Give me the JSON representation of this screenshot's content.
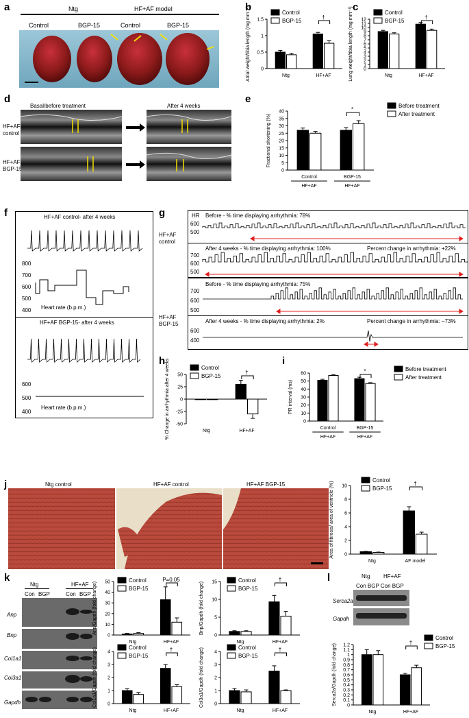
{
  "labels": {
    "a": "a",
    "b": "b",
    "c": "c",
    "d": "d",
    "e": "e",
    "f": "f",
    "g": "g",
    "h": "h",
    "i": "i",
    "j": "j",
    "k": "k",
    "l": "l"
  },
  "panel_a": {
    "group_ntg": "Ntg",
    "group_model": "HF+AF model",
    "col1": "Control",
    "col2": "BGP-15",
    "col3": "Control",
    "col4": "BGP-15"
  },
  "panel_d": {
    "basal": "Basal/before treatment",
    "after": "After 4 weeks",
    "row1": "HF+AF\ncontrol",
    "row2": "HF+AF\nBGP-15"
  },
  "panel_f": {
    "top_title": "HF+AF control- after 4 weeks",
    "bottom_title": "HF+AF BGP-15- after 4 weeks",
    "hr_label": "Heart rate (b.p.m.)",
    "top_ticks": [
      "800",
      "700",
      "600",
      "500",
      "400"
    ],
    "bottom_ticks": [
      "600",
      "500",
      "400"
    ]
  },
  "panel_g": {
    "hr": "HR",
    "row_control": "HF+AF\ncontrol",
    "row_bgp": "HF+AF\nBGP-15",
    "c_before": "Before - % time displaying arrhythmia: 78%",
    "c_after": "After 4 weeks - % time displaying arrhythmia: 100%",
    "c_change": "Percent change in arrhythmia: +22%",
    "b_before": "Before - % time displaying arrhythmia: 75%",
    "b_after": "After 4 weeks - % time displaying arrhythmia: 2%",
    "b_change": "Percent change in arrhythmia: −73%",
    "ticks_c1": [
      "600",
      "500"
    ],
    "ticks_c2": [
      "700",
      "600",
      "500"
    ],
    "ticks_b1": [
      "700",
      "600",
      "500"
    ],
    "ticks_b2": [
      "600",
      "400"
    ]
  },
  "panel_j": {
    "t1": "Ntg control",
    "t2": "HF+AF control",
    "t3": "HF+AF BGP-15"
  },
  "panel_k_blot": {
    "ntg": "Ntg",
    "hfaf": "HF+AF",
    "con": "Con",
    "bgp": "BGP",
    "genes": [
      "Anp",
      "Bnp",
      "Col1a1",
      "Col3a1",
      "Gapdh"
    ]
  },
  "panel_l_blot": {
    "ntg": "Ntg",
    "hfaf": "HF+AF",
    "lanes": "Con BGP Con BGP",
    "genes": [
      "Serca2a",
      "Gapdh"
    ]
  },
  "colors": {
    "control": "#000000",
    "bgp": "#ffffff",
    "arrow": "#e02020",
    "heart": "#8b1a1a",
    "histo": "#b0443a"
  },
  "chart_data": [
    {
      "id": "b",
      "type": "bar",
      "categories": [
        "Ntg",
        "HF+AF"
      ],
      "series": [
        {
          "name": "Control",
          "values": [
            0.5,
            1.05
          ],
          "err": [
            0.05,
            0.05
          ]
        },
        {
          "name": "BGP-15",
          "values": [
            0.42,
            0.77
          ],
          "err": [
            0.04,
            0.08
          ]
        }
      ],
      "ylabel": "Atrial weight/tibia length (mg mm⁻¹)",
      "ylim": [
        0,
        1.5
      ],
      "yticks": [
        0,
        0.5,
        1.0,
        1.5
      ],
      "annotations": [
        "*",
        "*",
        "†"
      ]
    },
    {
      "id": "c",
      "type": "bar",
      "categories": [
        "Ntg",
        "HF+AF"
      ],
      "series": [
        {
          "name": "Control",
          "values": [
            9.0,
            10.8
          ],
          "err": [
            0.3,
            0.4
          ]
        },
        {
          "name": "BGP-15",
          "values": [
            8.4,
            9.3
          ],
          "err": [
            0.3,
            0.3
          ]
        }
      ],
      "ylabel": "Lung weight/tibia length (mg mm⁻¹)",
      "ylim": [
        0,
        12
      ],
      "yticks": [
        0,
        1,
        2,
        3,
        4,
        5,
        6,
        7,
        8,
        9,
        10,
        11,
        12
      ],
      "annotations": [
        "*",
        "†"
      ]
    },
    {
      "id": "e",
      "type": "bar",
      "categories": [
        "Control",
        "BGP-15"
      ],
      "group_sub": "HF+AF",
      "series": [
        {
          "name": "Before treatment",
          "values": [
            27,
            27
          ],
          "err": [
            1.5,
            1.8
          ]
        },
        {
          "name": "After treatment",
          "values": [
            25,
            31.5
          ],
          "err": [
            1.2,
            2.0
          ]
        }
      ],
      "ylabel": "Fractional shortening (%)",
      "ylim": [
        0,
        40
      ],
      "yticks": [
        0,
        5,
        10,
        15,
        20,
        25,
        30,
        35,
        40
      ],
      "annotations": [
        "*",
        "*",
        "*"
      ]
    },
    {
      "id": "h",
      "type": "bar",
      "categories": [
        "Ntg",
        "HF+AF"
      ],
      "series": [
        {
          "name": "Control",
          "values": [
            0,
            30
          ],
          "err": [
            0,
            8
          ]
        },
        {
          "name": "BGP-15",
          "values": [
            0,
            -30
          ],
          "err": [
            0,
            9
          ]
        }
      ],
      "ylabel": "% Change in arrhythmia after 4 weeks",
      "ylim": [
        -50,
        50
      ],
      "yticks": [
        -50,
        -25,
        0,
        25,
        50
      ],
      "annotations": [
        "*",
        "†"
      ]
    },
    {
      "id": "i",
      "type": "bar",
      "categories": [
        "Control",
        "BGP-15"
      ],
      "group_sub": "HF+AF",
      "series": [
        {
          "name": "Before treatment",
          "values": [
            51,
            53
          ],
          "err": [
            1.2,
            1.8
          ]
        },
        {
          "name": "After treatment",
          "values": [
            57,
            47
          ],
          "err": [
            1.0,
            1.0
          ]
        }
      ],
      "ylabel": "PR interval (ms)",
      "ylim": [
        0,
        60
      ],
      "yticks": [
        0,
        10,
        20,
        30,
        40,
        50,
        60
      ],
      "annotations": [
        "*",
        "*",
        "*"
      ]
    },
    {
      "id": "j",
      "type": "bar",
      "categories": [
        "Ntg",
        "AF model"
      ],
      "series": [
        {
          "name": "Control",
          "values": [
            0.35,
            6.3
          ],
          "err": [
            0.05,
            0.6
          ]
        },
        {
          "name": "BGP-15",
          "values": [
            0.25,
            2.9
          ],
          "err": [
            0.05,
            0.3
          ]
        }
      ],
      "ylabel": "Area of fibrosis/ area of ventricle (%)",
      "ylim": [
        0,
        10
      ],
      "yticks": [
        0,
        2,
        4,
        6,
        8,
        10
      ],
      "annotations": [
        "*",
        "*",
        "†"
      ]
    },
    {
      "id": "k1",
      "type": "bar",
      "categories": [
        "Ntg",
        "HF+AF"
      ],
      "series": [
        {
          "name": "Control",
          "values": [
            1,
            33
          ],
          "err": [
            0.5,
            12
          ]
        },
        {
          "name": "BGP-15",
          "values": [
            1.5,
            12
          ],
          "err": [
            0.7,
            4
          ]
        }
      ],
      "ylabel": "Anp/Gapdh (fold change)",
      "ylim": [
        0,
        50
      ],
      "yticks": [
        0,
        10,
        20,
        30,
        40,
        50
      ],
      "annotations": [
        "*",
        "P=0.05"
      ]
    },
    {
      "id": "k2",
      "type": "bar",
      "categories": [
        "Ntg",
        "HF+AF"
      ],
      "series": [
        {
          "name": "Control",
          "values": [
            1,
            9.3
          ],
          "err": [
            0.2,
            1.8
          ]
        },
        {
          "name": "BGP-15",
          "values": [
            1,
            5.3
          ],
          "err": [
            0.2,
            1.3
          ]
        }
      ],
      "ylabel": "Bnp/Gapdh (fold change)",
      "ylim": [
        0,
        15
      ],
      "yticks": [
        0,
        5,
        10,
        15
      ],
      "annotations": [
        "*",
        "*",
        "†"
      ]
    },
    {
      "id": "k3",
      "type": "bar",
      "categories": [
        "Ntg",
        "HF+AF"
      ],
      "series": [
        {
          "name": "Control",
          "values": [
            1,
            2.7
          ],
          "err": [
            0.15,
            0.3
          ]
        },
        {
          "name": "BGP-15",
          "values": [
            0.7,
            1.3
          ],
          "err": [
            0.15,
            0.15
          ]
        }
      ],
      "ylabel": "Col1a1/Gapdh (fold change)",
      "ylim": [
        0,
        4
      ],
      "yticks": [
        0,
        1,
        2,
        3,
        4
      ],
      "annotations": [
        "*",
        "†"
      ]
    },
    {
      "id": "k4",
      "type": "bar",
      "categories": [
        "Ntg",
        "HF+AF"
      ],
      "series": [
        {
          "name": "Control",
          "values": [
            1,
            2.5
          ],
          "err": [
            0.15,
            0.4
          ]
        },
        {
          "name": "BGP-15",
          "values": [
            0.9,
            1
          ],
          "err": [
            0.15,
            0.05
          ]
        }
      ],
      "ylabel": "Col3a1/Gapdh (fold change)",
      "ylim": [
        0,
        4
      ],
      "yticks": [
        0,
        1,
        2,
        3,
        4
      ],
      "annotations": [
        "*",
        "†"
      ]
    },
    {
      "id": "l",
      "type": "bar",
      "categories": [
        "Ntg",
        "HF+AF"
      ],
      "series": [
        {
          "name": "Control",
          "values": [
            1.0,
            0.6
          ],
          "err": [
            0.1,
            0.03
          ]
        },
        {
          "name": "BGP-15",
          "values": [
            1.0,
            0.74
          ],
          "err": [
            0.08,
            0.05
          ]
        }
      ],
      "ylabel": "Serca2a/Gapdh (fold change)",
      "ylim": [
        0,
        1.2
      ],
      "yticks": [
        0,
        0.1,
        0.2,
        0.3,
        0.4,
        0.5,
        0.6,
        0.7,
        0.8,
        0.9,
        1.0,
        1.1,
        1.2
      ],
      "annotations": [
        "*",
        "*",
        "†"
      ]
    }
  ]
}
